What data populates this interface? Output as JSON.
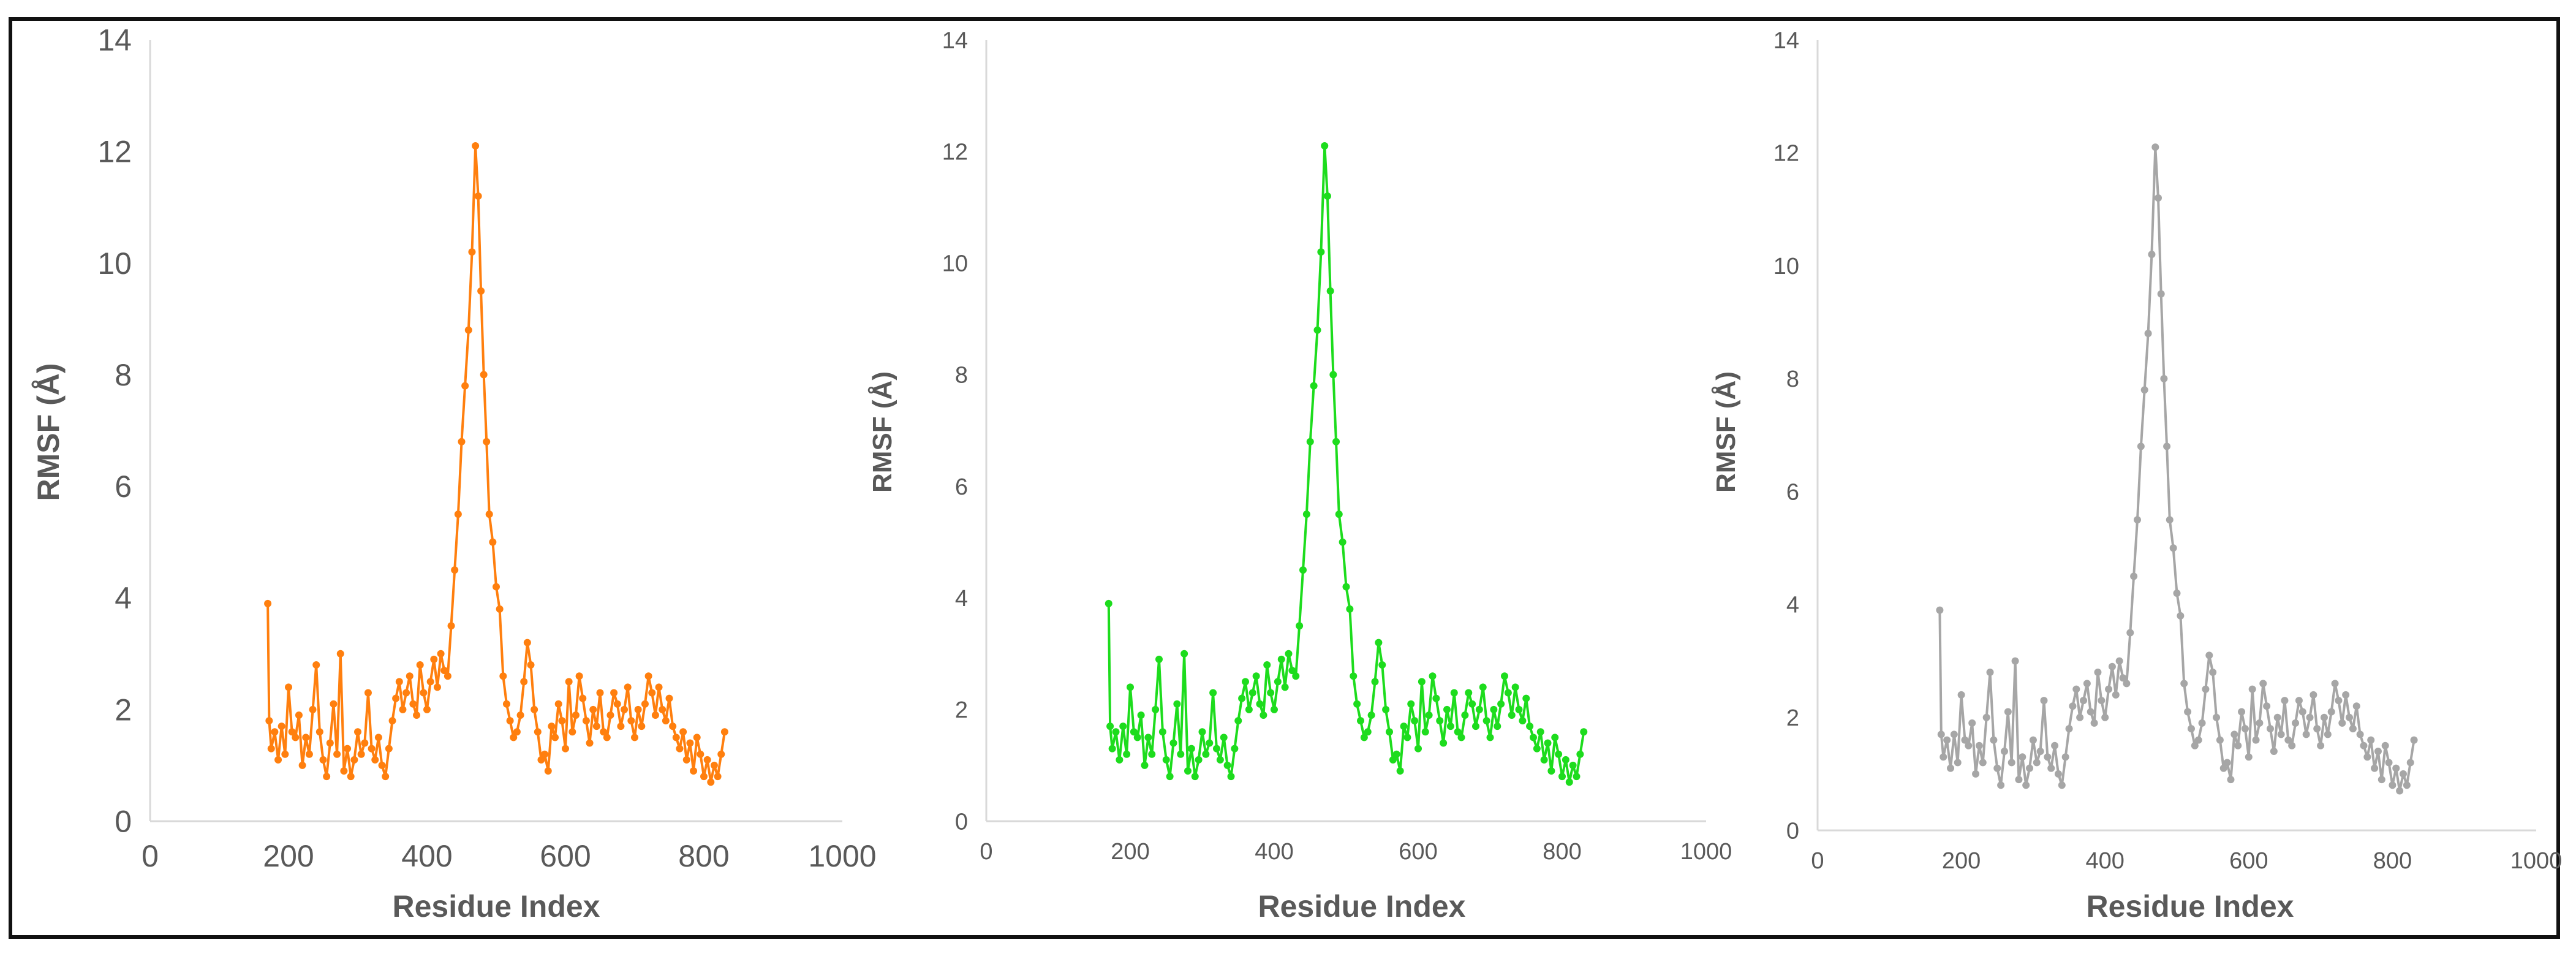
{
  "chart_data": [
    {
      "type": "line",
      "xlabel": "Residue Index",
      "ylabel": "RMSF (Å)",
      "xlim": [
        0,
        1000
      ],
      "ylim": [
        0,
        14
      ],
      "xticks": [
        "0",
        "200",
        "400",
        "600",
        "800",
        "1000"
      ],
      "yticks": [
        "0",
        "2",
        "4",
        "6",
        "8",
        "10",
        "12",
        "14"
      ],
      "grid": false,
      "color": "#FF7F0E",
      "series": [
        {
          "x": [
            170,
            172,
            175,
            180,
            185,
            190,
            195,
            200,
            205,
            210,
            215,
            220,
            225,
            230,
            235,
            240,
            245,
            250,
            255,
            260,
            265,
            270,
            275,
            280,
            285,
            290,
            295,
            300,
            305,
            310,
            315,
            320,
            325,
            330,
            335,
            340,
            345,
            350,
            355,
            360,
            365,
            370,
            375,
            380,
            385,
            390,
            395,
            400,
            405,
            410,
            415,
            420,
            425,
            430,
            435,
            440,
            445,
            450,
            455,
            460,
            465,
            470,
            474,
            478,
            482,
            486,
            490,
            495,
            500,
            505,
            510,
            515,
            520,
            525,
            530,
            535,
            540,
            545,
            550,
            555,
            560,
            565,
            570,
            575,
            580,
            585,
            590,
            595,
            600,
            605,
            610,
            615,
            620,
            625,
            630,
            635,
            640,
            645,
            650,
            655,
            660,
            665,
            670,
            675,
            680,
            685,
            690,
            695,
            700,
            705,
            710,
            715,
            720,
            725,
            730,
            735,
            740,
            745,
            750,
            755,
            760,
            765,
            770,
            775,
            780,
            785,
            790,
            795,
            800,
            805,
            810,
            815,
            820,
            825,
            830
          ],
          "y": [
            3.9,
            1.8,
            1.3,
            1.6,
            1.1,
            1.7,
            1.2,
            2.4,
            1.6,
            1.5,
            1.9,
            1.0,
            1.5,
            1.2,
            2.0,
            2.8,
            1.6,
            1.1,
            0.8,
            1.4,
            2.1,
            1.2,
            3.0,
            0.9,
            1.3,
            0.8,
            1.1,
            1.6,
            1.2,
            1.4,
            2.3,
            1.3,
            1.1,
            1.5,
            1.0,
            0.8,
            1.3,
            1.8,
            2.2,
            2.5,
            2.0,
            2.3,
            2.6,
            2.1,
            1.9,
            2.8,
            2.3,
            2.0,
            2.5,
            2.9,
            2.4,
            3.0,
            2.7,
            2.6,
            3.5,
            4.5,
            5.5,
            6.8,
            7.8,
            8.8,
            10.2,
            12.1,
            11.2,
            9.5,
            8.0,
            6.8,
            5.5,
            5.0,
            4.2,
            3.8,
            2.6,
            2.1,
            1.8,
            1.5,
            1.6,
            1.9,
            2.5,
            3.2,
            2.8,
            2.0,
            1.6,
            1.1,
            1.2,
            0.9,
            1.7,
            1.5,
            2.1,
            1.8,
            1.3,
            2.5,
            1.6,
            1.9,
            2.6,
            2.2,
            1.8,
            1.4,
            2.0,
            1.7,
            2.3,
            1.6,
            1.5,
            1.9,
            2.3,
            2.1,
            1.7,
            2.0,
            2.4,
            1.8,
            1.5,
            2.0,
            1.7,
            2.1,
            2.6,
            2.3,
            1.9,
            2.4,
            2.0,
            1.8,
            2.2,
            1.7,
            1.5,
            1.3,
            1.6,
            1.1,
            1.4,
            0.9,
            1.5,
            1.2,
            0.8,
            1.1,
            0.7,
            1.0,
            0.8,
            1.2,
            1.6
          ]
        }
      ]
    },
    {
      "type": "line",
      "xlabel": "Residue Index",
      "ylabel": "RMSF (Å)",
      "xlim": [
        0,
        1000
      ],
      "ylim": [
        0,
        14
      ],
      "xticks": [
        "0",
        "200",
        "400",
        "600",
        "800",
        "1000"
      ],
      "yticks": [
        "0",
        "2",
        "4",
        "6",
        "8",
        "10",
        "12",
        "14"
      ],
      "grid": false,
      "color": "#1DDC1D",
      "series": [
        {
          "x": [
            170,
            172,
            175,
            180,
            185,
            190,
            195,
            200,
            205,
            210,
            215,
            220,
            225,
            230,
            235,
            240,
            245,
            250,
            255,
            260,
            265,
            270,
            275,
            280,
            285,
            290,
            295,
            300,
            305,
            310,
            315,
            320,
            325,
            330,
            335,
            340,
            345,
            350,
            355,
            360,
            365,
            370,
            375,
            380,
            385,
            390,
            395,
            400,
            405,
            410,
            415,
            420,
            425,
            430,
            435,
            440,
            445,
            450,
            455,
            460,
            465,
            470,
            474,
            478,
            482,
            486,
            490,
            495,
            500,
            505,
            510,
            515,
            520,
            525,
            530,
            535,
            540,
            545,
            550,
            555,
            560,
            565,
            570,
            575,
            580,
            585,
            590,
            595,
            600,
            605,
            610,
            615,
            620,
            625,
            630,
            635,
            640,
            645,
            650,
            655,
            660,
            665,
            670,
            675,
            680,
            685,
            690,
            695,
            700,
            705,
            710,
            715,
            720,
            725,
            730,
            735,
            740,
            745,
            750,
            755,
            760,
            765,
            770,
            775,
            780,
            785,
            790,
            795,
            800,
            805,
            810,
            815,
            820,
            825,
            830
          ],
          "y": [
            3.9,
            1.7,
            1.3,
            1.6,
            1.1,
            1.7,
            1.2,
            2.4,
            1.6,
            1.5,
            1.9,
            1.0,
            1.5,
            1.2,
            2.0,
            2.9,
            1.6,
            1.1,
            0.8,
            1.4,
            2.1,
            1.2,
            3.0,
            0.9,
            1.3,
            0.8,
            1.1,
            1.6,
            1.2,
            1.4,
            2.3,
            1.3,
            1.1,
            1.5,
            1.0,
            0.8,
            1.3,
            1.8,
            2.2,
            2.5,
            2.0,
            2.3,
            2.6,
            2.1,
            1.9,
            2.8,
            2.3,
            2.0,
            2.5,
            2.9,
            2.4,
            3.0,
            2.7,
            2.6,
            3.5,
            4.5,
            5.5,
            6.8,
            7.8,
            8.8,
            10.2,
            12.1,
            11.2,
            9.5,
            8.0,
            6.8,
            5.5,
            5.0,
            4.2,
            3.8,
            2.6,
            2.1,
            1.8,
            1.5,
            1.6,
            1.9,
            2.5,
            3.2,
            2.8,
            2.0,
            1.6,
            1.1,
            1.2,
            0.9,
            1.7,
            1.5,
            2.1,
            1.8,
            1.3,
            2.5,
            1.6,
            1.9,
            2.6,
            2.2,
            1.8,
            1.4,
            2.0,
            1.7,
            2.3,
            1.6,
            1.5,
            1.9,
            2.3,
            2.1,
            1.7,
            2.0,
            2.4,
            1.8,
            1.5,
            2.0,
            1.7,
            2.1,
            2.6,
            2.3,
            1.9,
            2.4,
            2.0,
            1.8,
            2.2,
            1.7,
            1.5,
            1.3,
            1.6,
            1.1,
            1.4,
            0.9,
            1.5,
            1.2,
            0.8,
            1.1,
            0.7,
            1.0,
            0.8,
            1.2,
            1.6
          ]
        }
      ]
    },
    {
      "type": "line",
      "xlabel": "Residue Index",
      "ylabel": "RMSF (Å)",
      "xlim": [
        0,
        1000
      ],
      "ylim": [
        0,
        14
      ],
      "xticks": [
        "0",
        "200",
        "400",
        "600",
        "800",
        "1000"
      ],
      "yticks": [
        "0",
        "2",
        "4",
        "6",
        "8",
        "10",
        "12",
        "14"
      ],
      "grid": false,
      "color": "#A6A6A6",
      "series": [
        {
          "x": [
            170,
            172,
            175,
            180,
            185,
            190,
            195,
            200,
            205,
            210,
            215,
            220,
            225,
            230,
            235,
            240,
            245,
            250,
            255,
            260,
            265,
            270,
            275,
            280,
            285,
            290,
            295,
            300,
            305,
            310,
            315,
            320,
            325,
            330,
            335,
            340,
            345,
            350,
            355,
            360,
            365,
            370,
            375,
            380,
            385,
            390,
            395,
            400,
            405,
            410,
            415,
            420,
            425,
            430,
            435,
            440,
            445,
            450,
            455,
            460,
            465,
            470,
            474,
            478,
            482,
            486,
            490,
            495,
            500,
            505,
            510,
            515,
            520,
            525,
            530,
            535,
            540,
            545,
            550,
            555,
            560,
            565,
            570,
            575,
            580,
            585,
            590,
            595,
            600,
            605,
            610,
            615,
            620,
            625,
            630,
            635,
            640,
            645,
            650,
            655,
            660,
            665,
            670,
            675,
            680,
            685,
            690,
            695,
            700,
            705,
            710,
            715,
            720,
            725,
            730,
            735,
            740,
            745,
            750,
            755,
            760,
            765,
            770,
            775,
            780,
            785,
            790,
            795,
            800,
            805,
            810,
            815,
            820,
            825,
            830
          ],
          "y": [
            3.9,
            1.7,
            1.3,
            1.6,
            1.1,
            1.7,
            1.2,
            2.4,
            1.6,
            1.5,
            1.9,
            1.0,
            1.5,
            1.2,
            2.0,
            2.8,
            1.6,
            1.1,
            0.8,
            1.4,
            2.1,
            1.2,
            3.0,
            0.9,
            1.3,
            0.8,
            1.1,
            1.6,
            1.2,
            1.4,
            2.3,
            1.3,
            1.1,
            1.5,
            1.0,
            0.8,
            1.3,
            1.8,
            2.2,
            2.5,
            2.0,
            2.3,
            2.6,
            2.1,
            1.9,
            2.8,
            2.3,
            2.0,
            2.5,
            2.9,
            2.4,
            3.0,
            2.7,
            2.6,
            3.5,
            4.5,
            5.5,
            6.8,
            7.8,
            8.8,
            10.2,
            12.1,
            11.2,
            9.5,
            8.0,
            6.8,
            5.5,
            5.0,
            4.2,
            3.8,
            2.6,
            2.1,
            1.8,
            1.5,
            1.6,
            1.9,
            2.5,
            3.1,
            2.8,
            2.0,
            1.6,
            1.1,
            1.2,
            0.9,
            1.7,
            1.5,
            2.1,
            1.8,
            1.3,
            2.5,
            1.6,
            1.9,
            2.6,
            2.2,
            1.8,
            1.4,
            2.0,
            1.7,
            2.3,
            1.6,
            1.5,
            1.9,
            2.3,
            2.1,
            1.7,
            2.0,
            2.4,
            1.8,
            1.5,
            2.0,
            1.7,
            2.1,
            2.6,
            2.3,
            1.9,
            2.4,
            2.0,
            1.8,
            2.2,
            1.7,
            1.5,
            1.3,
            1.6,
            1.1,
            1.4,
            0.9,
            1.5,
            1.2,
            0.8,
            1.1,
            0.7,
            1.0,
            0.8,
            1.2,
            1.6
          ]
        }
      ]
    }
  ]
}
